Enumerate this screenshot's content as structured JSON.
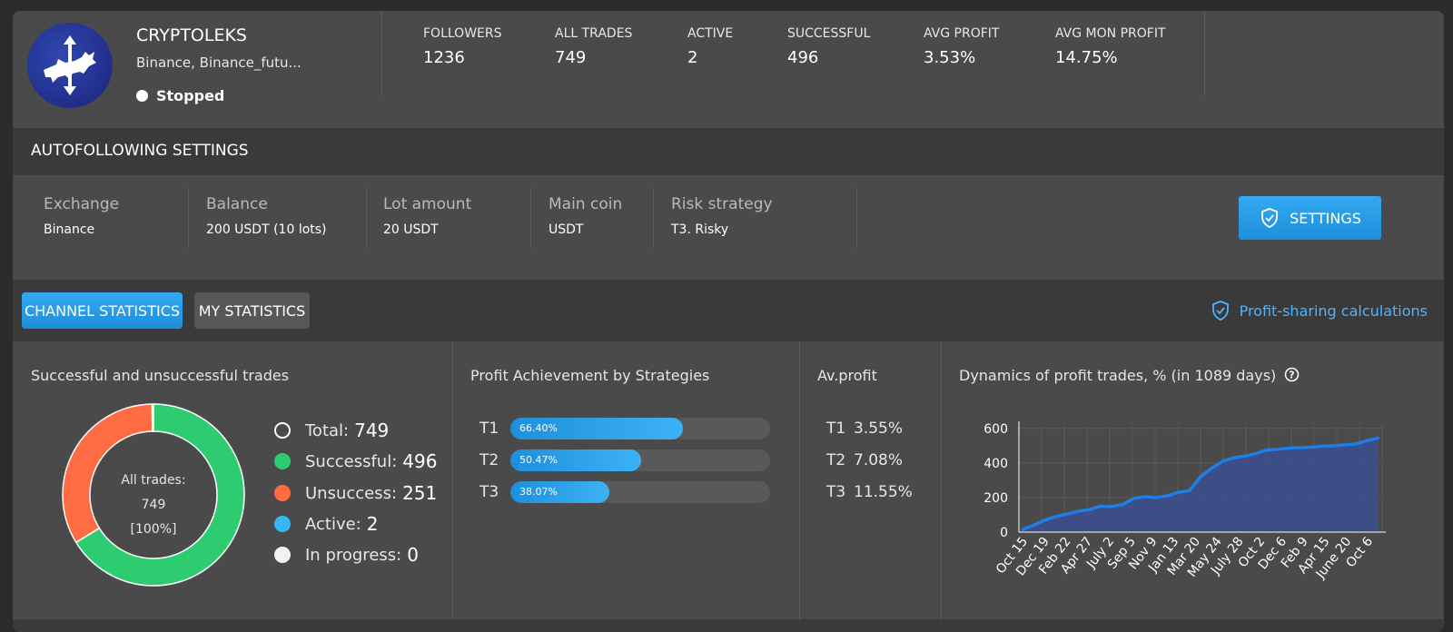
{
  "channel": {
    "name": "CRYPTOLEKS",
    "exchanges": "Binance, Binance_futu...",
    "status": "Stopped"
  },
  "stats": [
    {
      "label": "FOLLOWERS",
      "value": "1236"
    },
    {
      "label": "ALL TRADES",
      "value": "749"
    },
    {
      "label": "ACTIVE",
      "value": "2"
    },
    {
      "label": "SUCCESSFUL",
      "value": "496"
    },
    {
      "label": "AVG PROFIT",
      "value": "3.53%"
    },
    {
      "label": "AVG MON PROFIT",
      "value": "14.75%"
    }
  ],
  "autofollowing": {
    "title": "AUTOFOLLOWING SETTINGS",
    "fields": [
      {
        "label": "Exchange",
        "value": "Binance"
      },
      {
        "label": "Balance",
        "value": "200 USDT (10 lots)"
      },
      {
        "label": "Lot amount",
        "value": "20 USDT"
      },
      {
        "label": "Main coin",
        "value": "USDT"
      },
      {
        "label": "Risk strategy",
        "value": "T3. Risky"
      }
    ],
    "settings_label": "SETTINGS"
  },
  "tabs": {
    "channel_statistics": "CHANNEL STATISTICS",
    "my_statistics": "MY STATISTICS",
    "profit_sharing": "Profit-sharing calculations"
  },
  "trades": {
    "title": "Successful and unsuccessful trades",
    "center_label": "All trades:",
    "center_value": "749",
    "center_percent": "[100%]",
    "legend": [
      {
        "label": "Total:",
        "value": "749",
        "color": "",
        "outline": true
      },
      {
        "label": "Successful:",
        "value": "496",
        "color": "#2ecc71"
      },
      {
        "label": "Unsuccess:",
        "value": "251",
        "color": "#ff6b43"
      },
      {
        "label": "Active:",
        "value": "2",
        "color": "#35b6f5"
      },
      {
        "label": "In progress:",
        "value": "0",
        "color": "#f2f2f2"
      }
    ]
  },
  "strategies": {
    "title": "Profit Achievement by Strategies",
    "items": [
      {
        "label": "T1",
        "percent": "66.40%",
        "fill": 0.664
      },
      {
        "label": "T2",
        "percent": "50.47%",
        "fill": 0.5047
      },
      {
        "label": "T3",
        "percent": "38.07%",
        "fill": 0.3807
      }
    ]
  },
  "avprofit": {
    "title": "Av.profit",
    "items": [
      {
        "label": "T1",
        "value": "3.55%"
      },
      {
        "label": "T2",
        "value": "7.08%"
      },
      {
        "label": "T3",
        "value": "11.55%"
      }
    ]
  },
  "dynamics": {
    "title": "Dynamics of profit trades, % (in 1089 days)"
  },
  "colors": {
    "accent": "#2a9ee8",
    "success": "#2ecc71",
    "fail": "#ff6b43",
    "link": "#4fb3ff"
  },
  "chart_data": [
    {
      "type": "pie",
      "title": "",
      "categories": [
        "Successful",
        "Unsuccess",
        "Active",
        "In progress"
      ],
      "values": [
        496,
        251,
        2,
        0
      ]
    },
    {
      "type": "bar",
      "title": "Profit Achievement by Strategies",
      "categories": [
        "T1",
        "T2",
        "T3"
      ],
      "values": [
        66.4,
        50.47,
        38.07
      ],
      "ylim": [
        0,
        100
      ]
    },
    {
      "type": "area",
      "title": "Dynamics of profit trades, % (in 1089 days)",
      "xlabel": "",
      "ylabel": "",
      "ylim": [
        0,
        620
      ],
      "yticks": [
        0,
        200,
        400,
        600
      ],
      "grid": true,
      "tick_labels": [
        "Oct 15",
        "Dec 19",
        "Feb 22",
        "Apr 27",
        "July 2",
        "Sep 5",
        "Nov 9",
        "Jan 13",
        "Mar 20",
        "May 24",
        "July 28",
        "Oct 2",
        "Dec 6",
        "Feb 9",
        "Apr 15",
        "June 20",
        "Oct 6"
      ],
      "x": [
        "Oct 15",
        "Nov 17",
        "Dec 19",
        "Jan 21",
        "Feb 22",
        "Mar 26",
        "Apr 27",
        "May 30",
        "July 2",
        "Aug 3",
        "Sep 5",
        "Oct 7",
        "Nov 9",
        "Dec 11",
        "Jan 13",
        "Feb 15",
        "Mar 20",
        "Apr 22",
        "May 24",
        "June 26",
        "July 28",
        "Aug 30",
        "Oct 2",
        "Nov 4",
        "Dec 6",
        "Jan 7",
        "Feb 9",
        "Mar 13",
        "Apr 15",
        "May 17",
        "June 20",
        "Aug 13",
        "Oct 6"
      ],
      "series": [
        {
          "values": [
            15,
            40,
            70,
            90,
            105,
            120,
            130,
            150,
            148,
            160,
            195,
            205,
            200,
            210,
            230,
            240,
            320,
            370,
            410,
            430,
            440,
            455,
            475,
            480,
            487,
            488,
            492,
            497,
            500,
            505,
            510,
            530,
            545
          ]
        }
      ]
    }
  ]
}
